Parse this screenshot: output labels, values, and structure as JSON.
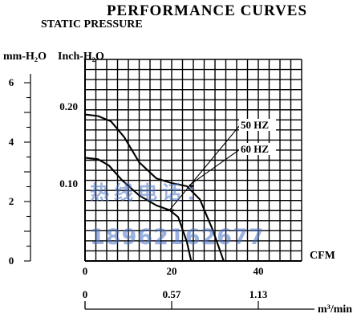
{
  "chart_data": {
    "type": "line",
    "title": "PERFORMANCE CURVES",
    "ylabel": "STATIC PRESSURE",
    "ylabel_units_mm": "mm-H₂O",
    "ylabel_units_inch": "Inch-H₂O",
    "xunit_cfm": "CFM",
    "xunit_m3": "m³/min",
    "grid": true,
    "xlim": [
      0,
      50
    ],
    "ylim_inch": [
      0,
      0.24
    ],
    "ylim_mm": [
      0,
      6.1
    ],
    "x_ticks_cfm": [
      "0",
      "20",
      "40"
    ],
    "x_ticks_m3": [
      {
        "label": "0",
        "cfm": 0
      },
      {
        "label": "0.57",
        "cfm": 20
      },
      {
        "label": "1.13",
        "cfm": 40
      }
    ],
    "y_ticks_inch": [
      "0.10",
      "0.20"
    ],
    "y_ticks_mm": [
      "0",
      "2",
      "4",
      "6"
    ],
    "series": [
      {
        "name": "50 HZ",
        "x": [
          0,
          3,
          5.5,
          8.5,
          12.5,
          16.5,
          19.5,
          21.5,
          23.5,
          24.5
        ],
        "y": [
          0.134,
          0.132,
          0.124,
          0.105,
          0.085,
          0.072,
          0.066,
          0.057,
          0.025,
          0
        ]
      },
      {
        "name": "60 HZ",
        "x": [
          0,
          3,
          6,
          9,
          12.5,
          16.5,
          20,
          23.5,
          26.5,
          29.5,
          32
        ],
        "y": [
          0.19,
          0.188,
          0.181,
          0.161,
          0.128,
          0.107,
          0.101,
          0.097,
          0.08,
          0.04,
          0
        ]
      }
    ],
    "watermark_lines": [
      "热线电话：",
      "18962162677"
    ]
  }
}
